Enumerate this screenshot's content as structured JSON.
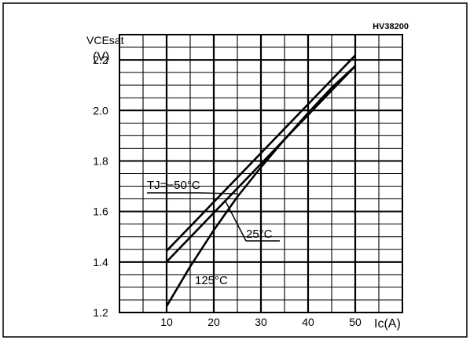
{
  "chart_data": {
    "type": "line",
    "code_label": "HV38200",
    "ylabel": "VCEsat",
    "ylabel_unit": "(V)",
    "xlabel": "Ic(A)",
    "xlim": [
      0,
      60
    ],
    "ylim": [
      1.2,
      2.3
    ],
    "x_ticks": [
      10,
      20,
      30,
      40,
      50
    ],
    "y_ticks": [
      1.2,
      1.4,
      1.6,
      1.8,
      2.0,
      2.2
    ],
    "y_tick_labels": [
      "1.2",
      "1.4",
      "1.6",
      "1.8",
      "2.0",
      "2.2"
    ],
    "grid": true,
    "series": [
      {
        "name": "TJ=−50°C",
        "x": [
          10,
          50
        ],
        "y": [
          1.444,
          2.218
        ]
      },
      {
        "name": "25°C",
        "x": [
          10,
          50
        ],
        "y": [
          1.401,
          2.176
        ]
      },
      {
        "name": "125°C",
        "x": [
          10,
          15,
          20,
          25,
          30,
          35,
          40,
          45,
          50
        ],
        "y": [
          1.225,
          1.382,
          1.526,
          1.658,
          1.775,
          1.885,
          1.99,
          2.09,
          2.176
        ]
      }
    ],
    "annotations": [
      "TJ=−50°C",
      "25°C",
      "125°C"
    ]
  }
}
